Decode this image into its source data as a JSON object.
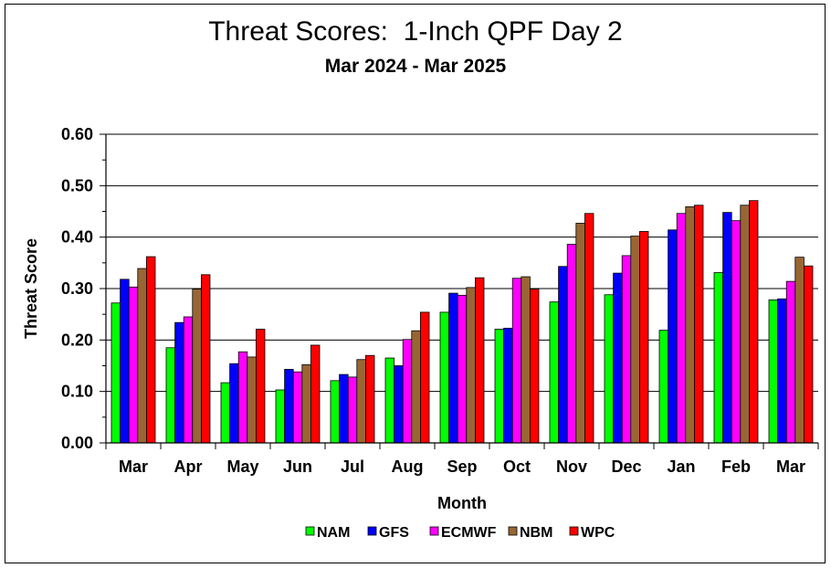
{
  "chart_data": {
    "type": "bar",
    "title": "Threat Scores:  1-Inch QPF Day 2",
    "subtitle": "Mar 2024 - Mar 2025",
    "xlabel": "Month",
    "ylabel": "Threat Score",
    "ylim": [
      0,
      0.6
    ],
    "yticks": [
      "0.00",
      "0.10",
      "0.20",
      "0.30",
      "0.40",
      "0.50",
      "0.60"
    ],
    "grid": "horizontal major lines",
    "legend_position": "bottom",
    "categories": [
      "Mar",
      "Apr",
      "May",
      "Jun",
      "Jul",
      "Aug",
      "Sep",
      "Oct",
      "Nov",
      "Dec",
      "Jan",
      "Feb",
      "Mar"
    ],
    "series": [
      {
        "name": "NAM",
        "color": "#00ff00",
        "values": [
          0.272,
          0.185,
          0.117,
          0.103,
          0.121,
          0.165,
          0.254,
          0.221,
          0.274,
          0.288,
          0.219,
          0.331,
          0.278
        ]
      },
      {
        "name": "GFS",
        "color": "#0000ff",
        "values": [
          0.318,
          0.234,
          0.154,
          0.143,
          0.133,
          0.15,
          0.291,
          0.223,
          0.343,
          0.33,
          0.414,
          0.448,
          0.28
        ]
      },
      {
        "name": "ECMWF",
        "color": "#ff00ff",
        "values": [
          0.303,
          0.245,
          0.177,
          0.138,
          0.128,
          0.201,
          0.287,
          0.32,
          0.386,
          0.364,
          0.446,
          0.432,
          0.314
        ]
      },
      {
        "name": "NBM",
        "color": "#996633",
        "values": [
          0.339,
          0.299,
          0.167,
          0.152,
          0.162,
          0.218,
          0.302,
          0.323,
          0.427,
          0.402,
          0.459,
          0.462,
          0.361
        ]
      },
      {
        "name": "WPC",
        "color": "#ff0000",
        "values": [
          0.362,
          0.327,
          0.221,
          0.19,
          0.17,
          0.254,
          0.321,
          0.299,
          0.446,
          0.411,
          0.462,
          0.471,
          0.344
        ]
      }
    ]
  }
}
